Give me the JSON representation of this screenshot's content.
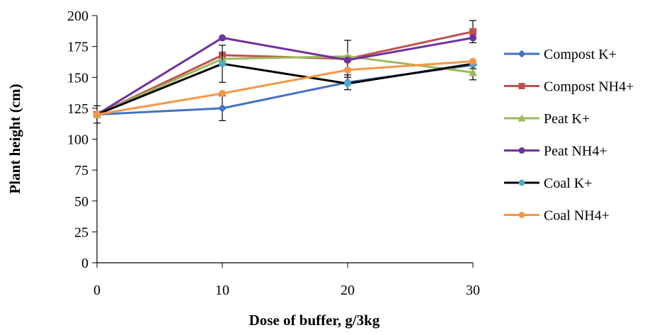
{
  "chart_data": {
    "type": "line",
    "title": "",
    "xlabel": "Dose of buffer,  g/3kg",
    "ylabel": "Plant  height (cm)",
    "x": [
      0,
      10,
      20,
      30
    ],
    "xlim": [
      0,
      30
    ],
    "ylim": [
      0,
      200
    ],
    "x_ticks": [
      "0",
      "10",
      "20",
      "30"
    ],
    "y_ticks": [
      "0",
      "25",
      "50",
      "75",
      "100",
      "125",
      "150",
      "175",
      "200"
    ],
    "grid": false,
    "legend_position": "right",
    "series": [
      {
        "name": "Compost K+",
        "color": "#4472C4",
        "marker": "diamond",
        "values": [
          120,
          125,
          146,
          160
        ],
        "errors": [
          7,
          10,
          6,
          3
        ]
      },
      {
        "name": "Compost NH4+",
        "color": "#C0504D",
        "marker": "square",
        "values": [
          120,
          168,
          165,
          187
        ],
        "errors": [
          0,
          0,
          15,
          9
        ]
      },
      {
        "name": "Peat K+",
        "color": "#9BBB59",
        "marker": "triangle",
        "values": [
          120,
          165,
          167,
          154
        ],
        "errors": [
          0,
          0,
          0,
          6
        ]
      },
      {
        "name": "Peat NH4+",
        "color": "#7030A0",
        "marker": "circle",
        "values": [
          120,
          182,
          164,
          182
        ],
        "errors": [
          0,
          0,
          0,
          0
        ]
      },
      {
        "name": "Coal K+",
        "color": "#000000",
        "marker": "circle",
        "marker_color": "#4BACC6",
        "values": [
          120,
          161,
          145,
          161
        ],
        "errors": [
          0,
          15,
          0,
          0
        ]
      },
      {
        "name": "Coal NH4+",
        "color": "#F79646",
        "marker": "circle",
        "values": [
          120,
          137,
          156,
          163
        ],
        "errors": [
          0,
          0,
          0,
          0
        ]
      }
    ]
  }
}
